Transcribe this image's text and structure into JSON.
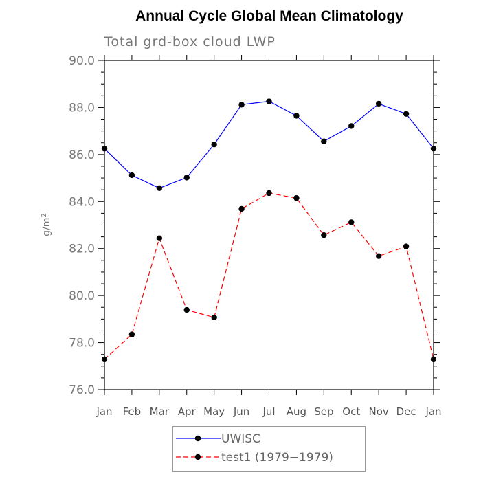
{
  "chart_data": {
    "type": "line",
    "title": "Annual Cycle Global Mean Climatology",
    "subtitle": "Total grd-box cloud LWP",
    "xlabel": "",
    "ylabel_base": "g/m",
    "ylabel_exp": "2",
    "categories": [
      "Jan",
      "Feb",
      "Mar",
      "Apr",
      "May",
      "Jun",
      "Jul",
      "Aug",
      "Sep",
      "Oct",
      "Nov",
      "Dec",
      "Jan"
    ],
    "ylim": [
      76.0,
      90.0
    ],
    "yticks": [
      "76.0",
      "78.0",
      "80.0",
      "82.0",
      "84.0",
      "86.0",
      "88.0",
      "90.0"
    ],
    "series": [
      {
        "name": "UWISC",
        "color": "#0000ff",
        "dashed": false,
        "values": [
          86.25,
          85.12,
          84.57,
          85.02,
          86.43,
          88.12,
          88.26,
          87.65,
          86.56,
          87.21,
          88.16,
          87.73,
          86.25
        ]
      },
      {
        "name": "test1 (1979−1979)",
        "color": "#ff0000",
        "dashed": true,
        "values": [
          77.29,
          78.35,
          82.44,
          79.39,
          79.07,
          83.69,
          84.36,
          84.15,
          82.57,
          83.12,
          81.68,
          82.09,
          77.29
        ]
      }
    ],
    "legend_position": "bottom-center"
  }
}
